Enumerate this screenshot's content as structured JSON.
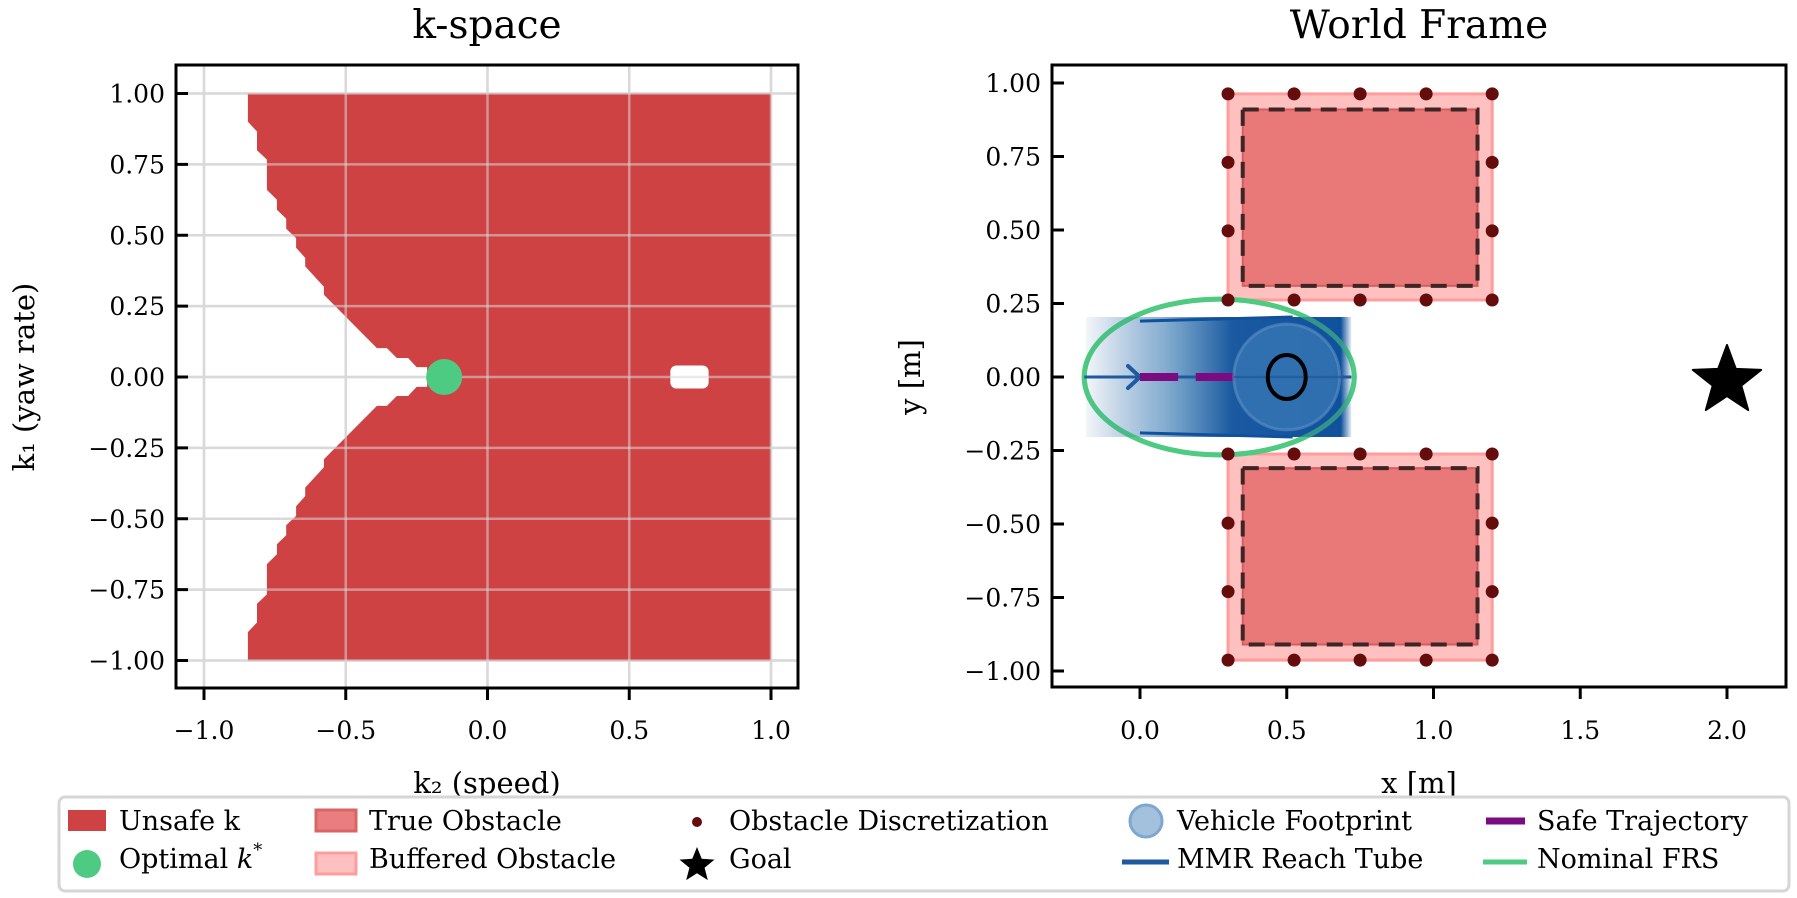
{
  "colors": {
    "unsafe": "#cf4244",
    "optimal": "#4ecb82",
    "true_obstacle": "#e97878",
    "true_obstacle_edge": "#d85e5e",
    "buffered_obstacle": "#ffc0c0",
    "buffered_obstacle_edge": "#ff9c9c",
    "obstacle_dot": "#650c0c",
    "obstacle_dash": "#3e2424",
    "reach_tube": "#0f519c",
    "vehicle_footprint": "#3a78b6",
    "vehicle_footprint_legend": "#a3c0dd",
    "safe_trajectory": "#7c0a80",
    "nominal_frs": "#4ecb82",
    "goal": "#000000",
    "grid": "#d9d9d9",
    "legend_border": "#d6d6d6"
  },
  "chart_data": [
    {
      "type": "area",
      "id": "kspace",
      "title": "k-space",
      "xlabel": "k₂ (speed)",
      "ylabel": "k₁ (yaw rate)",
      "xlim": [
        -1.1,
        1.1
      ],
      "ylim": [
        -1.1,
        1.1
      ],
      "grid": true,
      "xticks": [
        -1.0,
        -0.5,
        0.0,
        0.5,
        1.0
      ],
      "xtick_labels": [
        "−1.0",
        "−0.5",
        "0.0",
        "0.5",
        "1.0"
      ],
      "yticks": [
        1.0,
        0.75,
        0.5,
        0.25,
        0.0,
        -0.25,
        -0.5,
        -0.75,
        -1.0
      ],
      "ytick_labels": [
        "1.00",
        "0.75",
        "0.50",
        "0.25",
        "0.00",
        "−0.25",
        "−0.50",
        "−0.75",
        "−1.00"
      ],
      "unsafe_region_upper_boundary": [
        [
          -0.845,
          1.0
        ],
        [
          -0.845,
          0.9
        ],
        [
          -0.813,
          0.866
        ],
        [
          -0.813,
          0.8
        ],
        [
          -0.778,
          0.767
        ],
        [
          -0.778,
          0.66
        ],
        [
          -0.743,
          0.625
        ],
        [
          -0.743,
          0.59
        ],
        [
          -0.71,
          0.558
        ],
        [
          -0.71,
          0.523
        ],
        [
          -0.675,
          0.49
        ],
        [
          -0.675,
          0.456
        ],
        [
          -0.643,
          0.42
        ],
        [
          -0.643,
          0.39
        ],
        [
          -0.577,
          0.318
        ],
        [
          -0.577,
          0.29
        ],
        [
          -0.39,
          0.102
        ],
        [
          -0.355,
          0.102
        ],
        [
          -0.32,
          0.067
        ],
        [
          -0.28,
          0.067
        ],
        [
          -0.25,
          0.035
        ],
        [
          -0.213,
          0.035
        ],
        [
          -0.213,
          0.0
        ]
      ],
      "unsafe_region_right": 1.0,
      "safe_hole": {
        "k2": [
          0.645,
          0.78
        ],
        "k1": [
          -0.03,
          0.03
        ]
      },
      "optimal_k": {
        "k2": -0.153,
        "k1": 0.0
      }
    },
    {
      "type": "scatter",
      "id": "world",
      "title": "World Frame",
      "xlabel": "x [m]",
      "ylabel": "y [m]",
      "xlim": [
        -0.3,
        2.2
      ],
      "ylim": [
        -1.055,
        1.06
      ],
      "grid": false,
      "xticks": [
        0.0,
        0.5,
        1.0,
        1.5,
        2.0
      ],
      "xtick_labels": [
        "0.0",
        "0.5",
        "1.0",
        "1.5",
        "2.0"
      ],
      "yticks": [
        1.0,
        0.75,
        0.5,
        0.25,
        0.0,
        -0.25,
        -0.5,
        -0.75,
        -1.0
      ],
      "ytick_labels": [
        "1.00",
        "0.75",
        "0.50",
        "0.25",
        "0.00",
        "−0.25",
        "−0.50",
        "−0.75",
        "−1.00"
      ],
      "obstacles": [
        {
          "true": {
            "x": [
              0.35,
              1.15
            ],
            "y": [
              0.31,
              0.91
            ]
          },
          "buffered": {
            "x": [
              0.3,
              1.2
            ],
            "y": [
              0.262,
              0.963
            ]
          }
        },
        {
          "true": {
            "x": [
              0.35,
              1.15
            ],
            "y": [
              -0.91,
              -0.31
            ]
          },
          "buffered": {
            "x": [
              0.3,
              1.2
            ],
            "y": [
              -0.963,
              -0.262
            ]
          }
        }
      ],
      "discretization_x": [
        0.3,
        0.525,
        0.75,
        0.975,
        1.2
      ],
      "discretization_side_y": [
        0.73,
        0.497
      ],
      "reach_tube": {
        "x": [
          -0.185,
          0.72
        ],
        "y": [
          -0.204,
          0.204
        ]
      },
      "nominal_frs": {
        "cx": 0.27,
        "cy": 0.0,
        "rx": 0.46,
        "ry": 0.265
      },
      "vehicle": {
        "x": 0.5,
        "y": 0.0,
        "footprint_radius": 0.18,
        "marker_radius": 0.068
      },
      "heading_line": {
        "x": [
          -0.19,
          0.72
        ],
        "y": 0.0,
        "arrow_at": 0.0
      },
      "safe_trajectory_segments": [
        [
          0.0,
          0.13
        ],
        [
          0.19,
          0.32
        ]
      ],
      "goal": {
        "x": 2.0,
        "y": 0.0
      }
    }
  ],
  "legend": {
    "items": [
      {
        "label": "Unsafe k",
        "symbol": "unsafe-patch"
      },
      {
        "label": "Optimal ",
        "label_math": "k",
        "label_sup": "*",
        "symbol": "green-dot"
      },
      {
        "label": "True Obstacle",
        "symbol": "true-obstacle-patch"
      },
      {
        "label": "Buffered Obstacle",
        "symbol": "buffered-obstacle-patch"
      },
      {
        "label": "Obstacle Discretization",
        "symbol": "dark-red-dot"
      },
      {
        "label": "Goal",
        "symbol": "star"
      },
      {
        "label": "Vehicle Footprint",
        "symbol": "blue-circle"
      },
      {
        "label": "MMR Reach Tube",
        "symbol": "blue-line"
      },
      {
        "label": "Safe Trajectory",
        "symbol": "purple-line"
      },
      {
        "label": "Nominal FRS",
        "symbol": "green-line"
      }
    ]
  }
}
